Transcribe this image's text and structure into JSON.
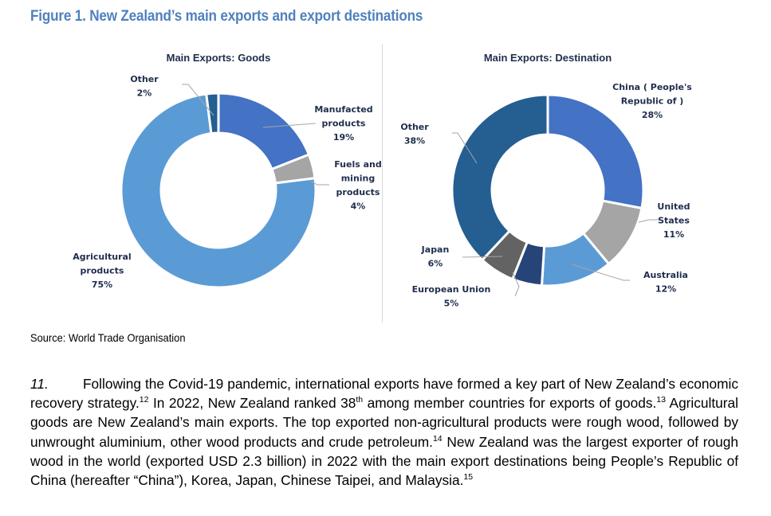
{
  "figure": {
    "title": "Figure  1. New Zealand’s main exports and export destinations",
    "source": "Source: World Trade Organisation"
  },
  "chart_data": [
    {
      "type": "pie",
      "variant": "donut",
      "title": "Main Exports: Goods",
      "categories": [
        "Manufacted products",
        "Fuels and mining products",
        "Agricultural products",
        "Other"
      ],
      "values": [
        19,
        4,
        75,
        2
      ],
      "unit": "%",
      "colors": [
        "#4472c4",
        "#a5a5a5",
        "#5b9bd5",
        "#255e91"
      ],
      "labels": [
        {
          "lines": [
            "Manufacted",
            "products",
            "19%"
          ]
        },
        {
          "lines": [
            "Fuels and",
            "mining",
            "products",
            "4%"
          ]
        },
        {
          "lines": [
            "Agricultural",
            "products",
            "75%"
          ]
        },
        {
          "lines": [
            "Other",
            "2%"
          ]
        }
      ]
    },
    {
      "type": "pie",
      "variant": "donut",
      "title": "Main Exports: Destination",
      "categories": [
        "China ( People's Republic of )",
        "United States",
        "Australia",
        "European Union",
        "Japan",
        "Other"
      ],
      "values": [
        28,
        11,
        12,
        5,
        6,
        38
      ],
      "unit": "%",
      "colors": [
        "#4472c4",
        "#a5a5a5",
        "#5b9bd5",
        "#264478",
        "#636363",
        "#255e91"
      ],
      "labels": [
        {
          "lines": [
            "China ( People's",
            "Republic of )",
            "28%"
          ]
        },
        {
          "lines": [
            "United",
            "States",
            "11%"
          ]
        },
        {
          "lines": [
            "Australia",
            "12%"
          ]
        },
        {
          "lines": [
            "European Union",
            "5%"
          ]
        },
        {
          "lines": [
            "Japan",
            "6%"
          ]
        },
        {
          "lines": [
            "Other",
            "38%"
          ]
        }
      ]
    }
  ],
  "paragraph": {
    "number": "11.",
    "parts": [
      {
        "t": "Following the Covid-19 pandemic, international exports have formed a key part of New Zealand’s economic recovery strategy."
      },
      {
        "sup": "12"
      },
      {
        "t": " In 2022, New Zealand ranked 38"
      },
      {
        "sup": "th"
      },
      {
        "t": " among member countries for exports of goods."
      },
      {
        "sup": "13"
      },
      {
        "t": " Agricultural goods are New Zealand’s main exports. The top exported non-agricultural products were rough wood, followed by unwrought aluminium, other wood products and crude petroleum."
      },
      {
        "sup": "14"
      },
      {
        "t": " New Zealand was the largest exporter of rough wood in the world (exported USD 2.3 billion) in 2022 with the main export destinations being People’s Republic of China (hereafter “China”), Korea, Japan, Chinese Taipei, and Malaysia."
      },
      {
        "sup": "15"
      }
    ]
  }
}
